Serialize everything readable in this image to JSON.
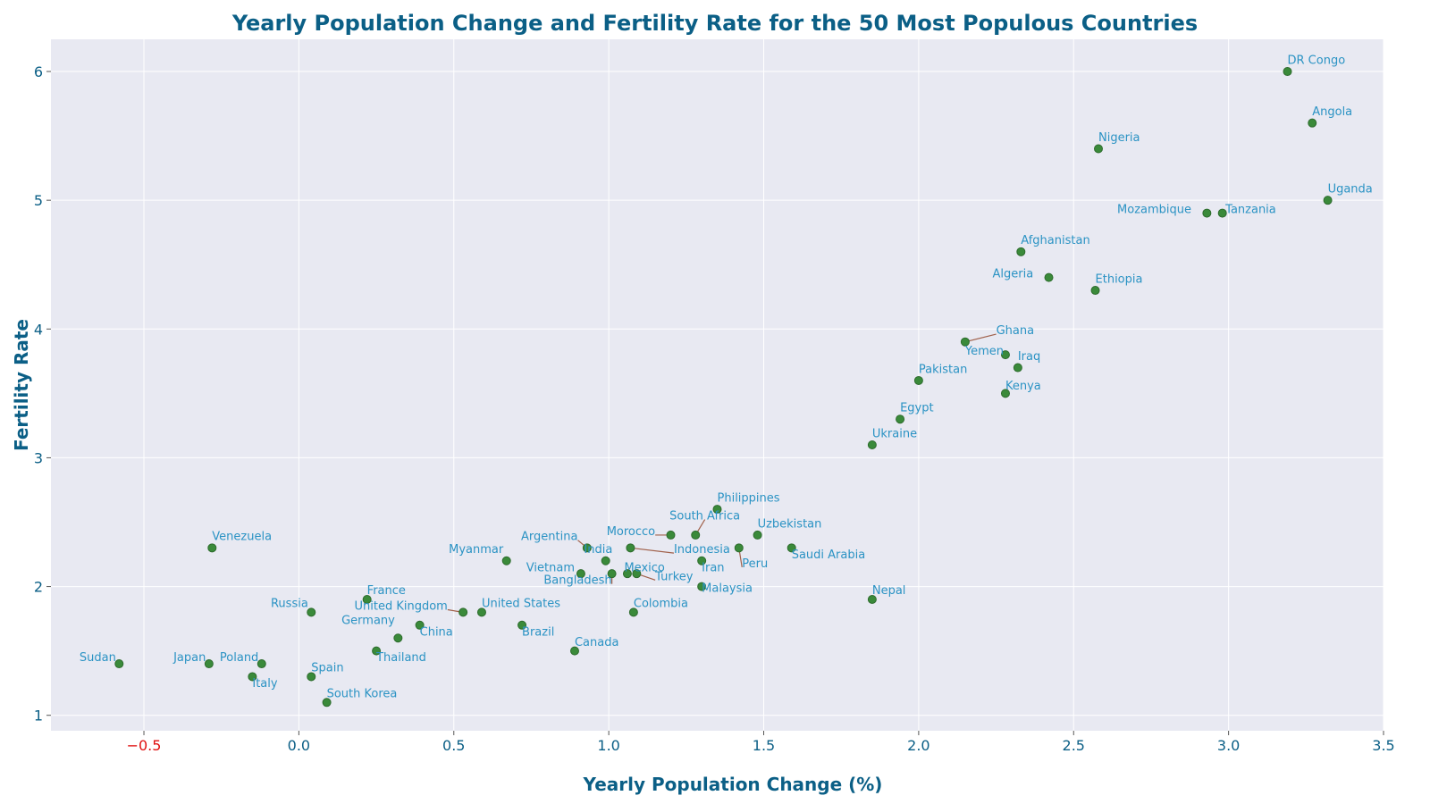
{
  "colors": {
    "title": "#0b5f86",
    "axis_title": "#0b5f86",
    "tick": "#0b5f86",
    "negative_tick": "#e01010",
    "plot_bg": "#e8e9f2",
    "grid": "#ffffff",
    "marker_fill": "#3a8a3a",
    "marker_edge": "#2d6b2d",
    "label": "#2b93c4",
    "leader": "#a0604a"
  },
  "chart_data": {
    "type": "scatter",
    "title": "Yearly Population Change and Fertility Rate for the 50 Most Populous Countries",
    "xlabel": "Yearly Population Change (%)",
    "ylabel": "Fertility Rate",
    "xlim": [
      -0.8,
      3.5
    ],
    "ylim": [
      0.88,
      6.25
    ],
    "grid": true,
    "xticks": [
      -0.5,
      0.0,
      0.5,
      1.0,
      1.5,
      2.0,
      2.5,
      3.0,
      3.5
    ],
    "xtick_labels": [
      "−0.5",
      "0.0",
      "0.5",
      "1.0",
      "1.5",
      "2.0",
      "2.5",
      "3.0",
      "3.5"
    ],
    "yticks": [
      1,
      2,
      3,
      4,
      5,
      6
    ],
    "ytick_labels": [
      "1",
      "2",
      "3",
      "4",
      "5",
      "6"
    ],
    "points": [
      {
        "name": "DR Congo",
        "x": 3.19,
        "y": 6.0,
        "ldx": 0.0,
        "ldy": 0.06,
        "anchor": "start",
        "leader": false
      },
      {
        "name": "Angola",
        "x": 3.27,
        "y": 5.6,
        "ldx": 0.0,
        "ldy": 0.06,
        "anchor": "start",
        "leader": false
      },
      {
        "name": "Nigeria",
        "x": 2.58,
        "y": 5.4,
        "ldx": 0.0,
        "ldy": 0.06,
        "anchor": "start",
        "leader": false
      },
      {
        "name": "Uganda",
        "x": 3.32,
        "y": 5.0,
        "ldx": 0.0,
        "ldy": 0.06,
        "anchor": "start",
        "leader": false
      },
      {
        "name": "Mozambique",
        "x": 2.93,
        "y": 4.9,
        "ldx": -0.05,
        "ldy": 0.0,
        "anchor": "end",
        "leader": false
      },
      {
        "name": "Tanzania",
        "x": 2.98,
        "y": 4.9,
        "ldx": 0.01,
        "ldy": 0.0,
        "anchor": "start",
        "leader": false
      },
      {
        "name": "Afghanistan",
        "x": 2.33,
        "y": 4.6,
        "ldx": 0.0,
        "ldy": 0.06,
        "anchor": "start",
        "leader": false
      },
      {
        "name": "Algeria",
        "x": 2.42,
        "y": 4.4,
        "ldx": -0.05,
        "ldy": 0.0,
        "anchor": "end",
        "leader": false
      },
      {
        "name": "Ethiopia",
        "x": 2.57,
        "y": 4.3,
        "ldx": 0.0,
        "ldy": 0.06,
        "anchor": "start",
        "leader": false
      },
      {
        "name": "Ghana",
        "x": 2.15,
        "y": 3.9,
        "ldx": 0.1,
        "ldy": 0.06,
        "anchor": "start",
        "leader": true
      },
      {
        "name": "Yemen",
        "x": 2.28,
        "y": 3.8,
        "ldx": -0.13,
        "ldy": 0.0,
        "anchor": "start",
        "leader": false
      },
      {
        "name": "Iraq",
        "x": 2.32,
        "y": 3.7,
        "ldx": 0.0,
        "ldy": 0.06,
        "anchor": "start",
        "leader": false
      },
      {
        "name": "Pakistan",
        "x": 2.0,
        "y": 3.6,
        "ldx": 0.0,
        "ldy": 0.06,
        "anchor": "start",
        "leader": false
      },
      {
        "name": "Kenya",
        "x": 2.28,
        "y": 3.5,
        "ldx": 0.0,
        "ldy": 0.03,
        "anchor": "start",
        "leader": false
      },
      {
        "name": "Egypt",
        "x": 1.94,
        "y": 3.3,
        "ldx": 0.0,
        "ldy": 0.06,
        "anchor": "start",
        "leader": false
      },
      {
        "name": "Ukraine",
        "x": 1.85,
        "y": 3.1,
        "ldx": 0.0,
        "ldy": 0.06,
        "anchor": "start",
        "leader": false
      },
      {
        "name": "Philippines",
        "x": 1.35,
        "y": 2.6,
        "ldx": 0.0,
        "ldy": 0.06,
        "anchor": "start",
        "leader": false
      },
      {
        "name": "South Africa",
        "x": 1.28,
        "y": 2.4,
        "ldx": 0.03,
        "ldy": 0.12,
        "anchor": "middle",
        "leader": true
      },
      {
        "name": "Morocco",
        "x": 1.2,
        "y": 2.4,
        "ldx": -0.05,
        "ldy": 0.0,
        "anchor": "end",
        "leader": true
      },
      {
        "name": "Uzbekistan",
        "x": 1.48,
        "y": 2.4,
        "ldx": 0.0,
        "ldy": 0.06,
        "anchor": "start",
        "leader": false
      },
      {
        "name": "Argentina",
        "x": 0.93,
        "y": 2.3,
        "ldx": -0.03,
        "ldy": 0.06,
        "anchor": "end",
        "leader": true
      },
      {
        "name": "Indonesia",
        "x": 1.07,
        "y": 2.3,
        "ldx": 0.14,
        "ldy": -0.04,
        "anchor": "start",
        "leader": true
      },
      {
        "name": "Peru",
        "x": 1.42,
        "y": 2.3,
        "ldx": 0.01,
        "ldy": -0.15,
        "anchor": "start",
        "leader": true
      },
      {
        "name": "Saudi Arabia",
        "x": 1.59,
        "y": 2.3,
        "ldx": 0.0,
        "ldy": -0.08,
        "anchor": "start",
        "leader": false
      },
      {
        "name": "Venezuela",
        "x": -0.28,
        "y": 2.3,
        "ldx": 0.0,
        "ldy": 0.06,
        "anchor": "start",
        "leader": false
      },
      {
        "name": "Myanmar",
        "x": 0.67,
        "y": 2.2,
        "ldx": -0.01,
        "ldy": 0.06,
        "anchor": "end",
        "leader": false
      },
      {
        "name": "India",
        "x": 0.99,
        "y": 2.2,
        "ldx": -0.07,
        "ldy": 0.06,
        "anchor": "start",
        "leader": false
      },
      {
        "name": "Iran",
        "x": 1.3,
        "y": 2.2,
        "ldx": 0.0,
        "ldy": -0.08,
        "anchor": "start",
        "leader": false
      },
      {
        "name": "Vietnam",
        "x": 0.91,
        "y": 2.1,
        "ldx": -0.02,
        "ldy": 0.02,
        "anchor": "end",
        "leader": false
      },
      {
        "name": "Bangladesh",
        "x": 1.01,
        "y": 2.1,
        "ldx": 0.0,
        "ldy": -0.08,
        "anchor": "end",
        "leader": true
      },
      {
        "name": "Mexico",
        "x": 1.06,
        "y": 2.1,
        "ldx": -0.01,
        "ldy": 0.02,
        "anchor": "start",
        "leader": false
      },
      {
        "name": "Turkey",
        "x": 1.09,
        "y": 2.1,
        "ldx": 0.06,
        "ldy": -0.05,
        "anchor": "start",
        "leader": true
      },
      {
        "name": "Malaysia",
        "x": 1.3,
        "y": 2.0,
        "ldx": 0.0,
        "ldy": -0.04,
        "anchor": "start",
        "leader": false
      },
      {
        "name": "Nepal",
        "x": 1.85,
        "y": 1.9,
        "ldx": 0.0,
        "ldy": 0.04,
        "anchor": "start",
        "leader": false
      },
      {
        "name": "France",
        "x": 0.22,
        "y": 1.9,
        "ldx": 0.0,
        "ldy": 0.04,
        "anchor": "start",
        "leader": false
      },
      {
        "name": "Russia",
        "x": 0.04,
        "y": 1.8,
        "ldx": -0.01,
        "ldy": 0.04,
        "anchor": "end",
        "leader": false
      },
      {
        "name": "United Kingdom",
        "x": 0.53,
        "y": 1.8,
        "ldx": -0.05,
        "ldy": 0.02,
        "anchor": "end",
        "leader": true
      },
      {
        "name": "United States",
        "x": 0.59,
        "y": 1.8,
        "ldx": 0.0,
        "ldy": 0.04,
        "anchor": "start",
        "leader": false
      },
      {
        "name": "Colombia",
        "x": 1.08,
        "y": 1.8,
        "ldx": 0.0,
        "ldy": 0.04,
        "anchor": "start",
        "leader": false
      },
      {
        "name": "Brazil",
        "x": 0.72,
        "y": 1.7,
        "ldx": 0.0,
        "ldy": -0.08,
        "anchor": "start",
        "leader": false
      },
      {
        "name": "China",
        "x": 0.39,
        "y": 1.7,
        "ldx": 0.0,
        "ldy": -0.08,
        "anchor": "start",
        "leader": false
      },
      {
        "name": "Germany",
        "x": 0.32,
        "y": 1.6,
        "ldx": -0.01,
        "ldy": 0.11,
        "anchor": "end",
        "leader": false
      },
      {
        "name": "Thailand",
        "x": 0.25,
        "y": 1.5,
        "ldx": 0.0,
        "ldy": -0.08,
        "anchor": "start",
        "leader": false
      },
      {
        "name": "Canada",
        "x": 0.89,
        "y": 1.5,
        "ldx": 0.0,
        "ldy": 0.04,
        "anchor": "start",
        "leader": false
      },
      {
        "name": "Sudan",
        "x": -0.58,
        "y": 1.4,
        "ldx": -0.01,
        "ldy": 0.02,
        "anchor": "end",
        "leader": false
      },
      {
        "name": "Japan",
        "x": -0.29,
        "y": 1.4,
        "ldx": -0.01,
        "ldy": 0.02,
        "anchor": "end",
        "leader": false
      },
      {
        "name": "Poland",
        "x": -0.12,
        "y": 1.4,
        "ldx": -0.01,
        "ldy": 0.02,
        "anchor": "end",
        "leader": false
      },
      {
        "name": "Italy",
        "x": -0.15,
        "y": 1.3,
        "ldx": 0.0,
        "ldy": -0.08,
        "anchor": "start",
        "leader": false
      },
      {
        "name": "Spain",
        "x": 0.04,
        "y": 1.3,
        "ldx": 0.0,
        "ldy": 0.04,
        "anchor": "start",
        "leader": false
      },
      {
        "name": "South Korea",
        "x": 0.09,
        "y": 1.1,
        "ldx": 0.0,
        "ldy": 0.04,
        "anchor": "start",
        "leader": false
      }
    ]
  }
}
